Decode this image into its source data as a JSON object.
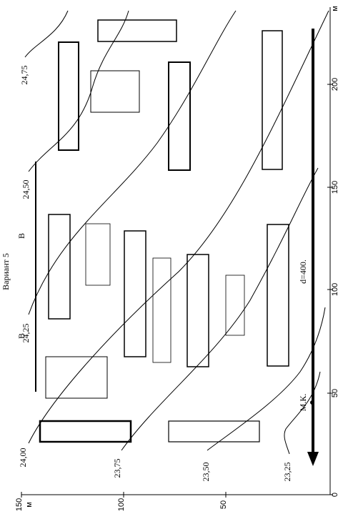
{
  "variant": "Вариант 5",
  "section_marks": [
    "B",
    "B"
  ],
  "contours": [
    "24,75",
    "24,50",
    "24,25",
    "24,00",
    "23,75",
    "23,50",
    "23,25"
  ],
  "pipe": {
    "diameter": "d=400.",
    "well": "М.К."
  },
  "axis_right": {
    "unit": "м",
    "ticks": [
      0,
      50,
      100,
      150,
      200
    ]
  },
  "axis_bottom": {
    "unit": "м",
    "ticks": [
      150,
      100,
      50
    ]
  }
}
